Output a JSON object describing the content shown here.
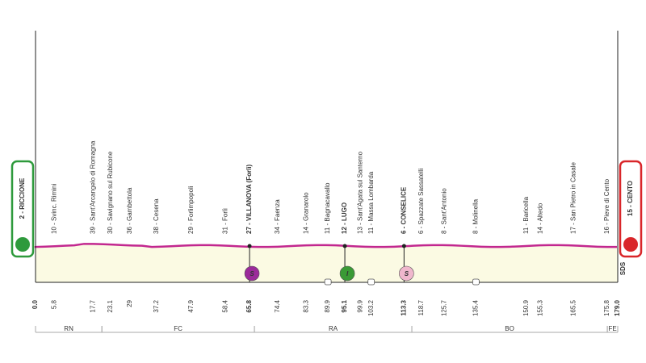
{
  "chart_data": {
    "type": "profile",
    "xlim": [
      0,
      179
    ],
    "start": {
      "label": "2 - RICCIONE",
      "km": {
        "value": 0,
        "label": "0.0"
      },
      "color": "#2e9a3c"
    },
    "finish": {
      "label": "15 - CENTO",
      "km": {
        "value": 179,
        "label": "179.0"
      },
      "color": "#d9262a"
    },
    "profile_color": "#c2278f",
    "fill_color": "#fbfae3",
    "waypoints": [
      {
        "label": "10 - Svinc. Rimini",
        "km": 5.8
      },
      {
        "label": "39 - Sant'Arcangelo di Romagna",
        "km": 17.7
      },
      {
        "label": "30 - Savignano sul Rubicone",
        "km": 23.1
      },
      {
        "label": "36 - Gambettola",
        "km": 29.0
      },
      {
        "label": "38 - Cesena",
        "km": 37.2
      },
      {
        "label": "29 - Forlimpopoli",
        "km": 47.9
      },
      {
        "label": "31 - Forlì",
        "km": 58.4
      },
      {
        "label": "27 - VILLANOVA (Forlì)",
        "km": 65.8,
        "bold": true,
        "marker": "S",
        "marker_color": "#9b2a9a"
      },
      {
        "label": "34 - Faenza",
        "km": 74.4
      },
      {
        "label": "14 - Granarolo",
        "km": 83.3
      },
      {
        "label": "11 - Bagnacavallo",
        "km": 89.9,
        "sector": true
      },
      {
        "label": "12 - LUGO",
        "km": 95.1,
        "bold": true,
        "marker": "I",
        "marker_color": "#3a9a35"
      },
      {
        "label": "13 - Sant'Agata sul Santerno",
        "km": 99.9
      },
      {
        "label": "11 - Massa Lombarda",
        "km": 103.2,
        "sector": true
      },
      {
        "label": "6 - CONSELICE",
        "km": 113.3,
        "bold": true,
        "marker": "S",
        "marker_color": "#f0b7cd"
      },
      {
        "label": "6 - Spazzate Sassatelli",
        "km": 118.7
      },
      {
        "label": "8 - Sant'Antonio",
        "km": 125.7
      },
      {
        "label": "8 - Molinella",
        "km": 135.4,
        "sector": true
      },
      {
        "label": "11 - Baricella",
        "km": 150.9
      },
      {
        "label": "14 - Altedo",
        "km": 155.3
      },
      {
        "label": "17 - San Pietro in Casale",
        "km": 165.5
      },
      {
        "label": "16 - Pieve di Cento",
        "km": 175.8
      }
    ],
    "provinces": [
      {
        "name": "RN",
        "from": 0,
        "to": 20.4
      },
      {
        "name": "FC",
        "from": 20.4,
        "to": 67.3
      },
      {
        "name": "RA",
        "from": 67.3,
        "to": 115.7
      },
      {
        "name": "BO",
        "from": 115.7,
        "to": 175.8
      },
      {
        "name": "FE",
        "from": 175.8,
        "to": 179
      }
    ],
    "brand": "SDS"
  }
}
